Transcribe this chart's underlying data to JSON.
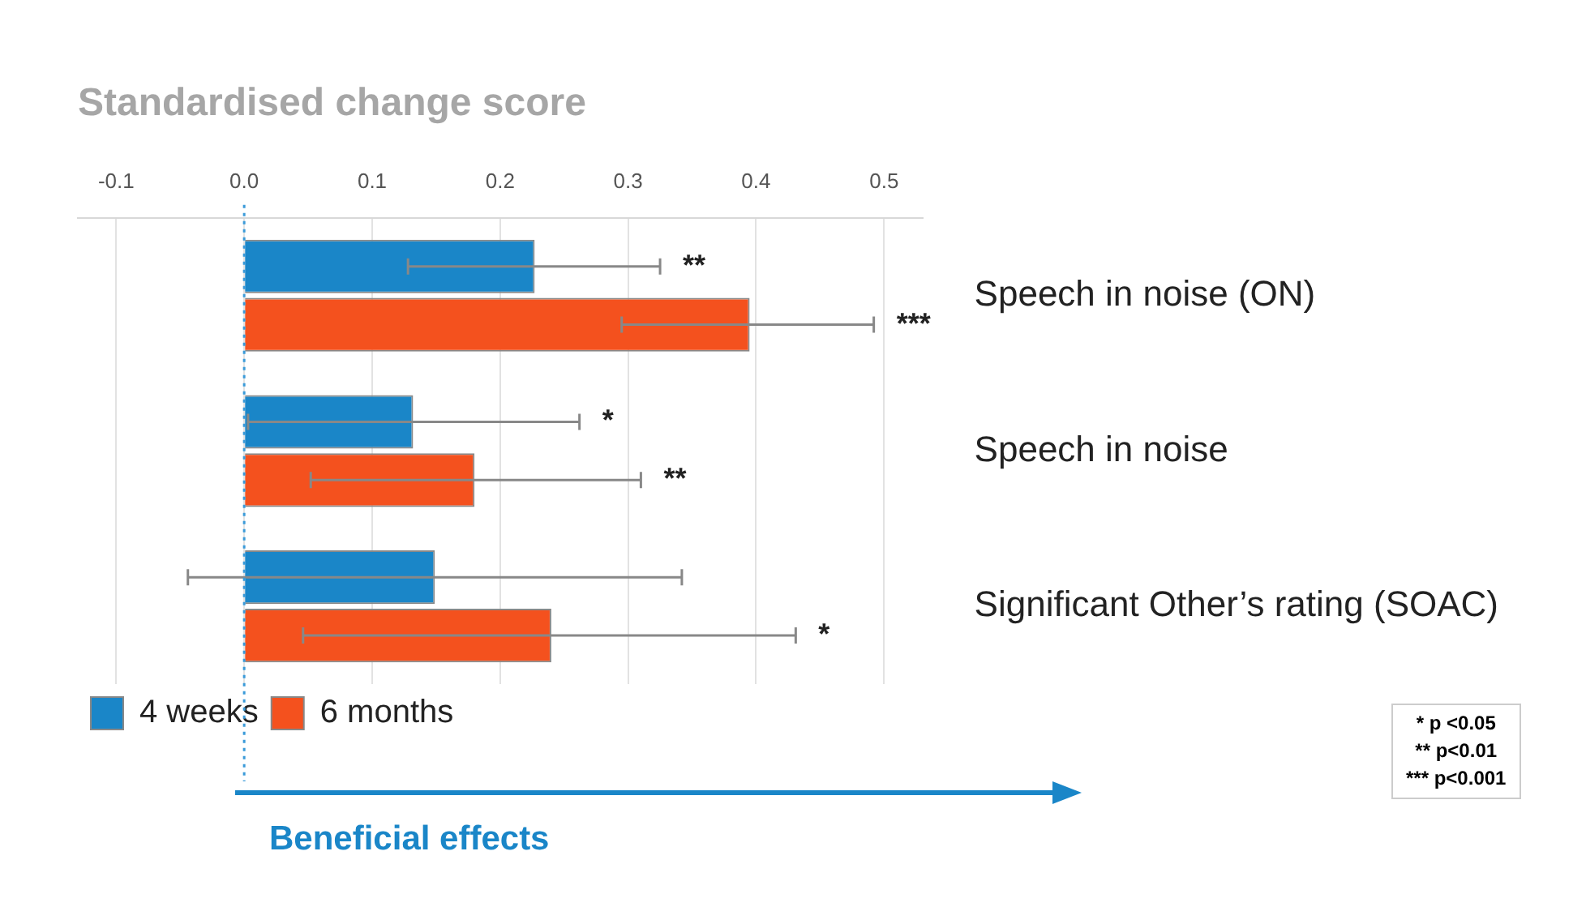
{
  "chart_data": {
    "type": "bar",
    "orientation": "horizontal",
    "title": "Standardised change score",
    "categories": [
      "Speech in noise (ON)",
      "Speech in noise",
      "Significant Other’s rating (SOAC)"
    ],
    "series": [
      {
        "name": "4 weeks",
        "color": "#1a86c8",
        "values": [
          0.227,
          0.132,
          0.149
        ],
        "errors": [
          [
            0.128,
            0.325
          ],
          [
            0.003,
            0.262
          ],
          [
            -0.044,
            0.342
          ]
        ]
      },
      {
        "name": "6 months",
        "color": "#f4511e",
        "values": [
          0.395,
          0.18,
          0.24
        ],
        "errors": [
          [
            0.295,
            0.492
          ],
          [
            0.052,
            0.31
          ],
          [
            0.046,
            0.431
          ]
        ]
      }
    ],
    "xlim": [
      -0.13,
      0.53
    ],
    "xticks": [
      -0.1,
      {
        "value": 0,
        "label": "0.0"
      },
      0.1,
      0.2,
      0.3,
      0.4,
      0.5
    ],
    "grid": "x",
    "legend": "bottom left",
    "ref_lines": [
      {
        "axis": "x",
        "value": 0,
        "color": "#3a9ad9",
        "line_style": "dotted"
      }
    ],
    "annotations": [
      "Beneficial effects",
      "* p <0.05",
      "** p<0.01",
      "*** p<0.001",
      "**",
      "***",
      "*",
      "**",
      "*"
    ]
  }
}
